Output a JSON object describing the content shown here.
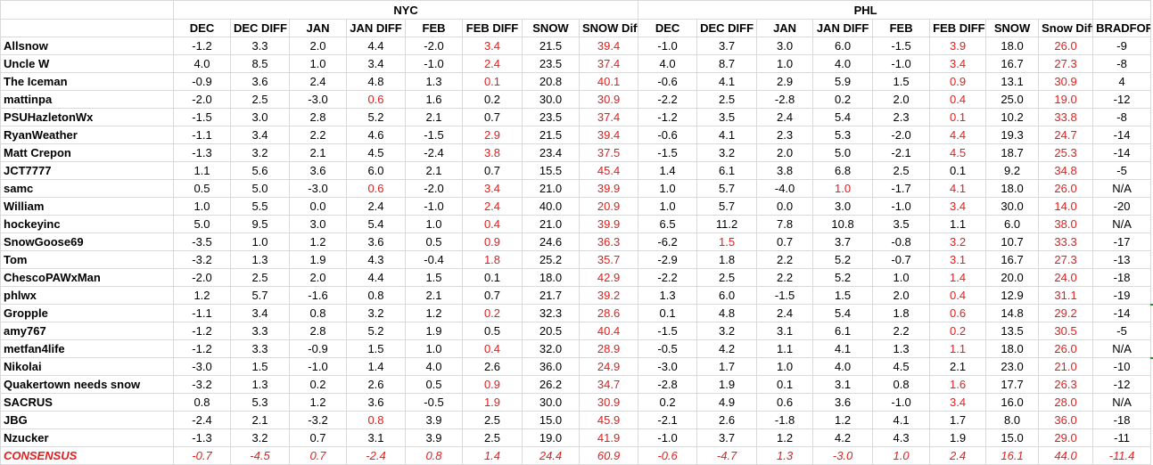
{
  "groups": {
    "nyc": "NYC",
    "phl": "PHL"
  },
  "headers": [
    "DEC",
    "DEC DIFF",
    "JAN",
    "JAN DIFF",
    "FEB",
    "FEB DIFF",
    "SNOW",
    "SNOW Diff",
    "DEC",
    "DEC DIFF",
    "JAN",
    "JAN DIFF",
    "FEB",
    "FEB DIFF",
    "SNOW",
    "Snow Diff",
    "BRADFORD"
  ],
  "highlight_color": "#e0201f",
  "rows": [
    {
      "name": "Allsnow",
      "cells": [
        "-1.2",
        "3.3",
        "2.0",
        "4.4",
        "-2.0",
        "3.4",
        "21.5",
        "39.4",
        "-1.0",
        "3.7",
        "3.0",
        "6.0",
        "-1.5",
        "3.9",
        "18.0",
        "26.0",
        "-9"
      ],
      "red": [
        5,
        7,
        13,
        15
      ]
    },
    {
      "name": "Uncle W",
      "cells": [
        "4.0",
        "8.5",
        "1.0",
        "3.4",
        "-1.0",
        "2.4",
        "23.5",
        "37.4",
        "4.0",
        "8.7",
        "1.0",
        "4.0",
        "-1.0",
        "3.4",
        "16.7",
        "27.3",
        "-8"
      ],
      "red": [
        5,
        7,
        13,
        15
      ]
    },
    {
      "name": "The Iceman",
      "cells": [
        "-0.9",
        "3.6",
        "2.4",
        "4.8",
        "1.3",
        "0.1",
        "20.8",
        "40.1",
        "-0.6",
        "4.1",
        "2.9",
        "5.9",
        "1.5",
        "0.9",
        "13.1",
        "30.9",
        "4"
      ],
      "red": [
        5,
        7,
        13,
        15
      ]
    },
    {
      "name": "mattinpa",
      "cells": [
        "-2.0",
        "2.5",
        "-3.0",
        "0.6",
        "1.6",
        "0.2",
        "30.0",
        "30.9",
        "-2.2",
        "2.5",
        "-2.8",
        "0.2",
        "2.0",
        "0.4",
        "25.0",
        "19.0",
        "-12"
      ],
      "red": [
        3,
        7,
        13,
        15
      ]
    },
    {
      "name": "PSUHazletonWx",
      "cells": [
        "-1.5",
        "3.0",
        "2.8",
        "5.2",
        "2.1",
        "0.7",
        "23.5",
        "37.4",
        "-1.2",
        "3.5",
        "2.4",
        "5.4",
        "2.3",
        "0.1",
        "10.2",
        "33.8",
        "-8"
      ],
      "red": [
        7,
        13,
        15
      ]
    },
    {
      "name": "RyanWeather",
      "cells": [
        "-1.1",
        "3.4",
        "2.2",
        "4.6",
        "-1.5",
        "2.9",
        "21.5",
        "39.4",
        "-0.6",
        "4.1",
        "2.3",
        "5.3",
        "-2.0",
        "4.4",
        "19.3",
        "24.7",
        "-14"
      ],
      "red": [
        5,
        7,
        13,
        15
      ]
    },
    {
      "name": "Matt Crepon",
      "cells": [
        "-1.3",
        "3.2",
        "2.1",
        "4.5",
        "-2.4",
        "3.8",
        "23.4",
        "37.5",
        "-1.5",
        "3.2",
        "2.0",
        "5.0",
        "-2.1",
        "4.5",
        "18.7",
        "25.3",
        "-14"
      ],
      "red": [
        5,
        7,
        13,
        15
      ]
    },
    {
      "name": "JCT7777",
      "cells": [
        "1.1",
        "5.6",
        "3.6",
        "6.0",
        "2.1",
        "0.7",
        "15.5",
        "45.4",
        "1.4",
        "6.1",
        "3.8",
        "6.8",
        "2.5",
        "0.1",
        "9.2",
        "34.8",
        "-5"
      ],
      "red": [
        7,
        15
      ]
    },
    {
      "name": "samc",
      "cells": [
        "0.5",
        "5.0",
        "-3.0",
        "0.6",
        "-2.0",
        "3.4",
        "21.0",
        "39.9",
        "1.0",
        "5.7",
        "-4.0",
        "1.0",
        "-1.7",
        "4.1",
        "18.0",
        "26.0",
        "N/A"
      ],
      "red": [
        3,
        5,
        7,
        11,
        13,
        15
      ]
    },
    {
      "name": "William",
      "cells": [
        "1.0",
        "5.5",
        "0.0",
        "2.4",
        "-1.0",
        "2.4",
        "40.0",
        "20.9",
        "1.0",
        "5.7",
        "0.0",
        "3.0",
        "-1.0",
        "3.4",
        "30.0",
        "14.0",
        "-20"
      ],
      "red": [
        5,
        7,
        13,
        15
      ]
    },
    {
      "name": "hockeyinc",
      "cells": [
        "5.0",
        "9.5",
        "3.0",
        "5.4",
        "1.0",
        "0.4",
        "21.0",
        "39.9",
        "6.5",
        "11.2",
        "7.8",
        "10.8",
        "3.5",
        "1.1",
        "6.0",
        "38.0",
        "N/A"
      ],
      "red": [
        5,
        7,
        15
      ]
    },
    {
      "name": "SnowGoose69",
      "cells": [
        "-3.5",
        "1.0",
        "1.2",
        "3.6",
        "0.5",
        "0.9",
        "24.6",
        "36.3",
        "-6.2",
        "1.5",
        "0.7",
        "3.7",
        "-0.8",
        "3.2",
        "10.7",
        "33.3",
        "-17"
      ],
      "red": [
        5,
        7,
        9,
        13,
        15
      ]
    },
    {
      "name": "Tom",
      "cells": [
        "-3.2",
        "1.3",
        "1.9",
        "4.3",
        "-0.4",
        "1.8",
        "25.2",
        "35.7",
        "-2.9",
        "1.8",
        "2.2",
        "5.2",
        "-0.7",
        "3.1",
        "16.7",
        "27.3",
        "-13"
      ],
      "red": [
        5,
        7,
        13,
        15
      ]
    },
    {
      "name": "ChescoPAWxMan",
      "cells": [
        "-2.0",
        "2.5",
        "2.0",
        "4.4",
        "1.5",
        "0.1",
        "18.0",
        "42.9",
        "-2.2",
        "2.5",
        "2.2",
        "5.2",
        "1.0",
        "1.4",
        "20.0",
        "24.0",
        "-18"
      ],
      "red": [
        7,
        13,
        15
      ]
    },
    {
      "name": "phlwx",
      "cells": [
        "1.2",
        "5.7",
        "-1.6",
        "0.8",
        "2.1",
        "0.7",
        "21.7",
        "39.2",
        "1.3",
        "6.0",
        "-1.5",
        "1.5",
        "2.0",
        "0.4",
        "12.9",
        "31.1",
        "-19"
      ],
      "red": [
        7,
        13,
        15
      ]
    },
    {
      "name": "Gropple",
      "cells": [
        "-1.1",
        "3.4",
        "0.8",
        "3.2",
        "1.2",
        "0.2",
        "32.3",
        "28.6",
        "0.1",
        "4.8",
        "2.4",
        "5.4",
        "1.8",
        "0.6",
        "14.8",
        "29.2",
        "-14"
      ],
      "red": [
        5,
        7,
        13,
        15
      ]
    },
    {
      "name": "amy767",
      "cells": [
        "-1.2",
        "3.3",
        "2.8",
        "5.2",
        "1.9",
        "0.5",
        "20.5",
        "40.4",
        "-1.5",
        "3.2",
        "3.1",
        "6.1",
        "2.2",
        "0.2",
        "13.5",
        "30.5",
        "-5"
      ],
      "red": [
        7,
        13,
        15
      ]
    },
    {
      "name": "metfan4life",
      "cells": [
        "-1.2",
        "3.3",
        "-0.9",
        "1.5",
        "1.0",
        "0.4",
        "32.0",
        "28.9",
        "-0.5",
        "4.2",
        "1.1",
        "4.1",
        "1.3",
        "1.1",
        "18.0",
        "26.0",
        "N/A"
      ],
      "red": [
        5,
        7,
        13,
        15
      ]
    },
    {
      "name": "Nikolai",
      "cells": [
        "-3.0",
        "1.5",
        "-1.0",
        "1.4",
        "4.0",
        "2.6",
        "36.0",
        "24.9",
        "-3.0",
        "1.7",
        "1.0",
        "4.0",
        "4.5",
        "2.1",
        "23.0",
        "21.0",
        "-10"
      ],
      "red": [
        7,
        15
      ]
    },
    {
      "name": "Quakertown needs snow",
      "cells": [
        "-3.2",
        "1.3",
        "0.2",
        "2.6",
        "0.5",
        "0.9",
        "26.2",
        "34.7",
        "-2.8",
        "1.9",
        "0.1",
        "3.1",
        "0.8",
        "1.6",
        "17.7",
        "26.3",
        "-12"
      ],
      "red": [
        5,
        7,
        13,
        15
      ]
    },
    {
      "name": "SACRUS",
      "cells": [
        "0.8",
        "5.3",
        "1.2",
        "3.6",
        "-0.5",
        "1.9",
        "30.0",
        "30.9",
        "0.2",
        "4.9",
        "0.6",
        "3.6",
        "-1.0",
        "3.4",
        "16.0",
        "28.0",
        "N/A"
      ],
      "red": [
        5,
        7,
        13,
        15
      ]
    },
    {
      "name": "JBG",
      "cells": [
        "-2.4",
        "2.1",
        "-3.2",
        "0.8",
        "3.9",
        "2.5",
        "15.0",
        "45.9",
        "-2.1",
        "2.6",
        "-1.8",
        "1.2",
        "4.1",
        "1.7",
        "8.0",
        "36.0",
        "-18"
      ],
      "red": [
        3,
        7,
        15
      ]
    },
    {
      "name": "Nzucker",
      "cells": [
        "-1.3",
        "3.2",
        "0.7",
        "3.1",
        "3.9",
        "2.5",
        "19.0",
        "41.9",
        "-1.0",
        "3.7",
        "1.2",
        "4.2",
        "4.3",
        "1.9",
        "15.0",
        "29.0",
        "-11"
      ],
      "red": [
        7,
        15
      ]
    }
  ],
  "consensus": {
    "name": "CONSENSUS",
    "cells": [
      "-0.7",
      "-4.5",
      "0.7",
      "-2.4",
      "0.8",
      "1.4",
      "24.4",
      "60.9",
      "-0.6",
      "-4.7",
      "1.3",
      "-3.0",
      "1.0",
      "2.4",
      "16.1",
      "44.0",
      "-11.4"
    ]
  }
}
